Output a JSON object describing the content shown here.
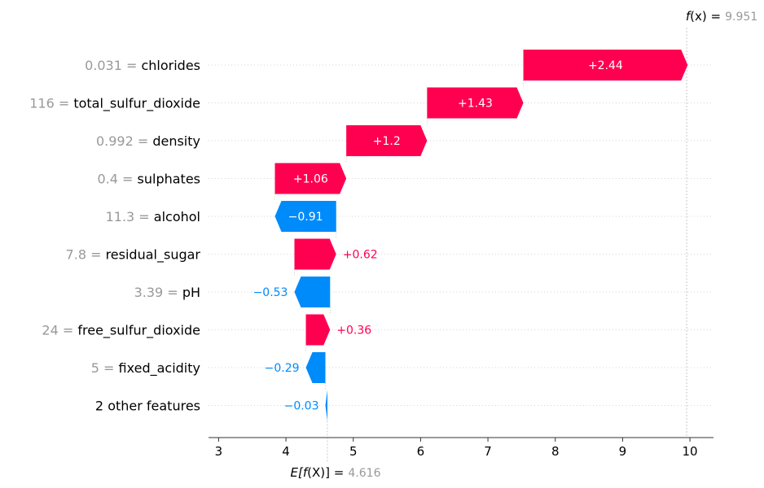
{
  "chart_data": {
    "type": "waterfall",
    "base_value": 4.616,
    "base_value_label": "4.616",
    "base_label_prefix": "E[",
    "base_label_func": "f",
    "base_label_inner": "(X)",
    "base_label_suffix": "] =",
    "final_value": 9.951,
    "final_value_label": "9.951",
    "final_label_func": "f",
    "final_label_inner": "(x)",
    "final_label_suffix": " =",
    "xlim": [
      2.85,
      10.35
    ],
    "xticks": [
      3,
      4,
      5,
      6,
      7,
      8,
      9,
      10
    ],
    "xtick_labels": [
      "3",
      "4",
      "5",
      "6",
      "7",
      "8",
      "9",
      "10"
    ],
    "colors": {
      "positive": "#ff0051",
      "negative": "#008bfb",
      "muted": "#999999"
    },
    "features": [
      {
        "value": "0.031",
        "name": "chlorides",
        "contribution": 2.44,
        "label": "+2.44"
      },
      {
        "value": "116",
        "name": "total_sulfur_dioxide",
        "contribution": 1.43,
        "label": "+1.43"
      },
      {
        "value": "0.992",
        "name": "density",
        "contribution": 1.2,
        "label": "+1.2"
      },
      {
        "value": "0.4",
        "name": "sulphates",
        "contribution": 1.06,
        "label": "+1.06"
      },
      {
        "value": "11.3",
        "name": "alcohol",
        "contribution": -0.91,
        "label": "−0.91"
      },
      {
        "value": "7.8",
        "name": "residual_sugar",
        "contribution": 0.62,
        "label": "+0.62"
      },
      {
        "value": "3.39",
        "name": "pH",
        "contribution": -0.53,
        "label": "−0.53"
      },
      {
        "value": "24",
        "name": "free_sulfur_dioxide",
        "contribution": 0.36,
        "label": "+0.36"
      },
      {
        "value": "5",
        "name": "fixed_acidity",
        "contribution": -0.29,
        "label": "−0.29"
      },
      {
        "value": "",
        "name": "2 other features",
        "contribution": -0.03,
        "label": "−0.03"
      }
    ]
  }
}
